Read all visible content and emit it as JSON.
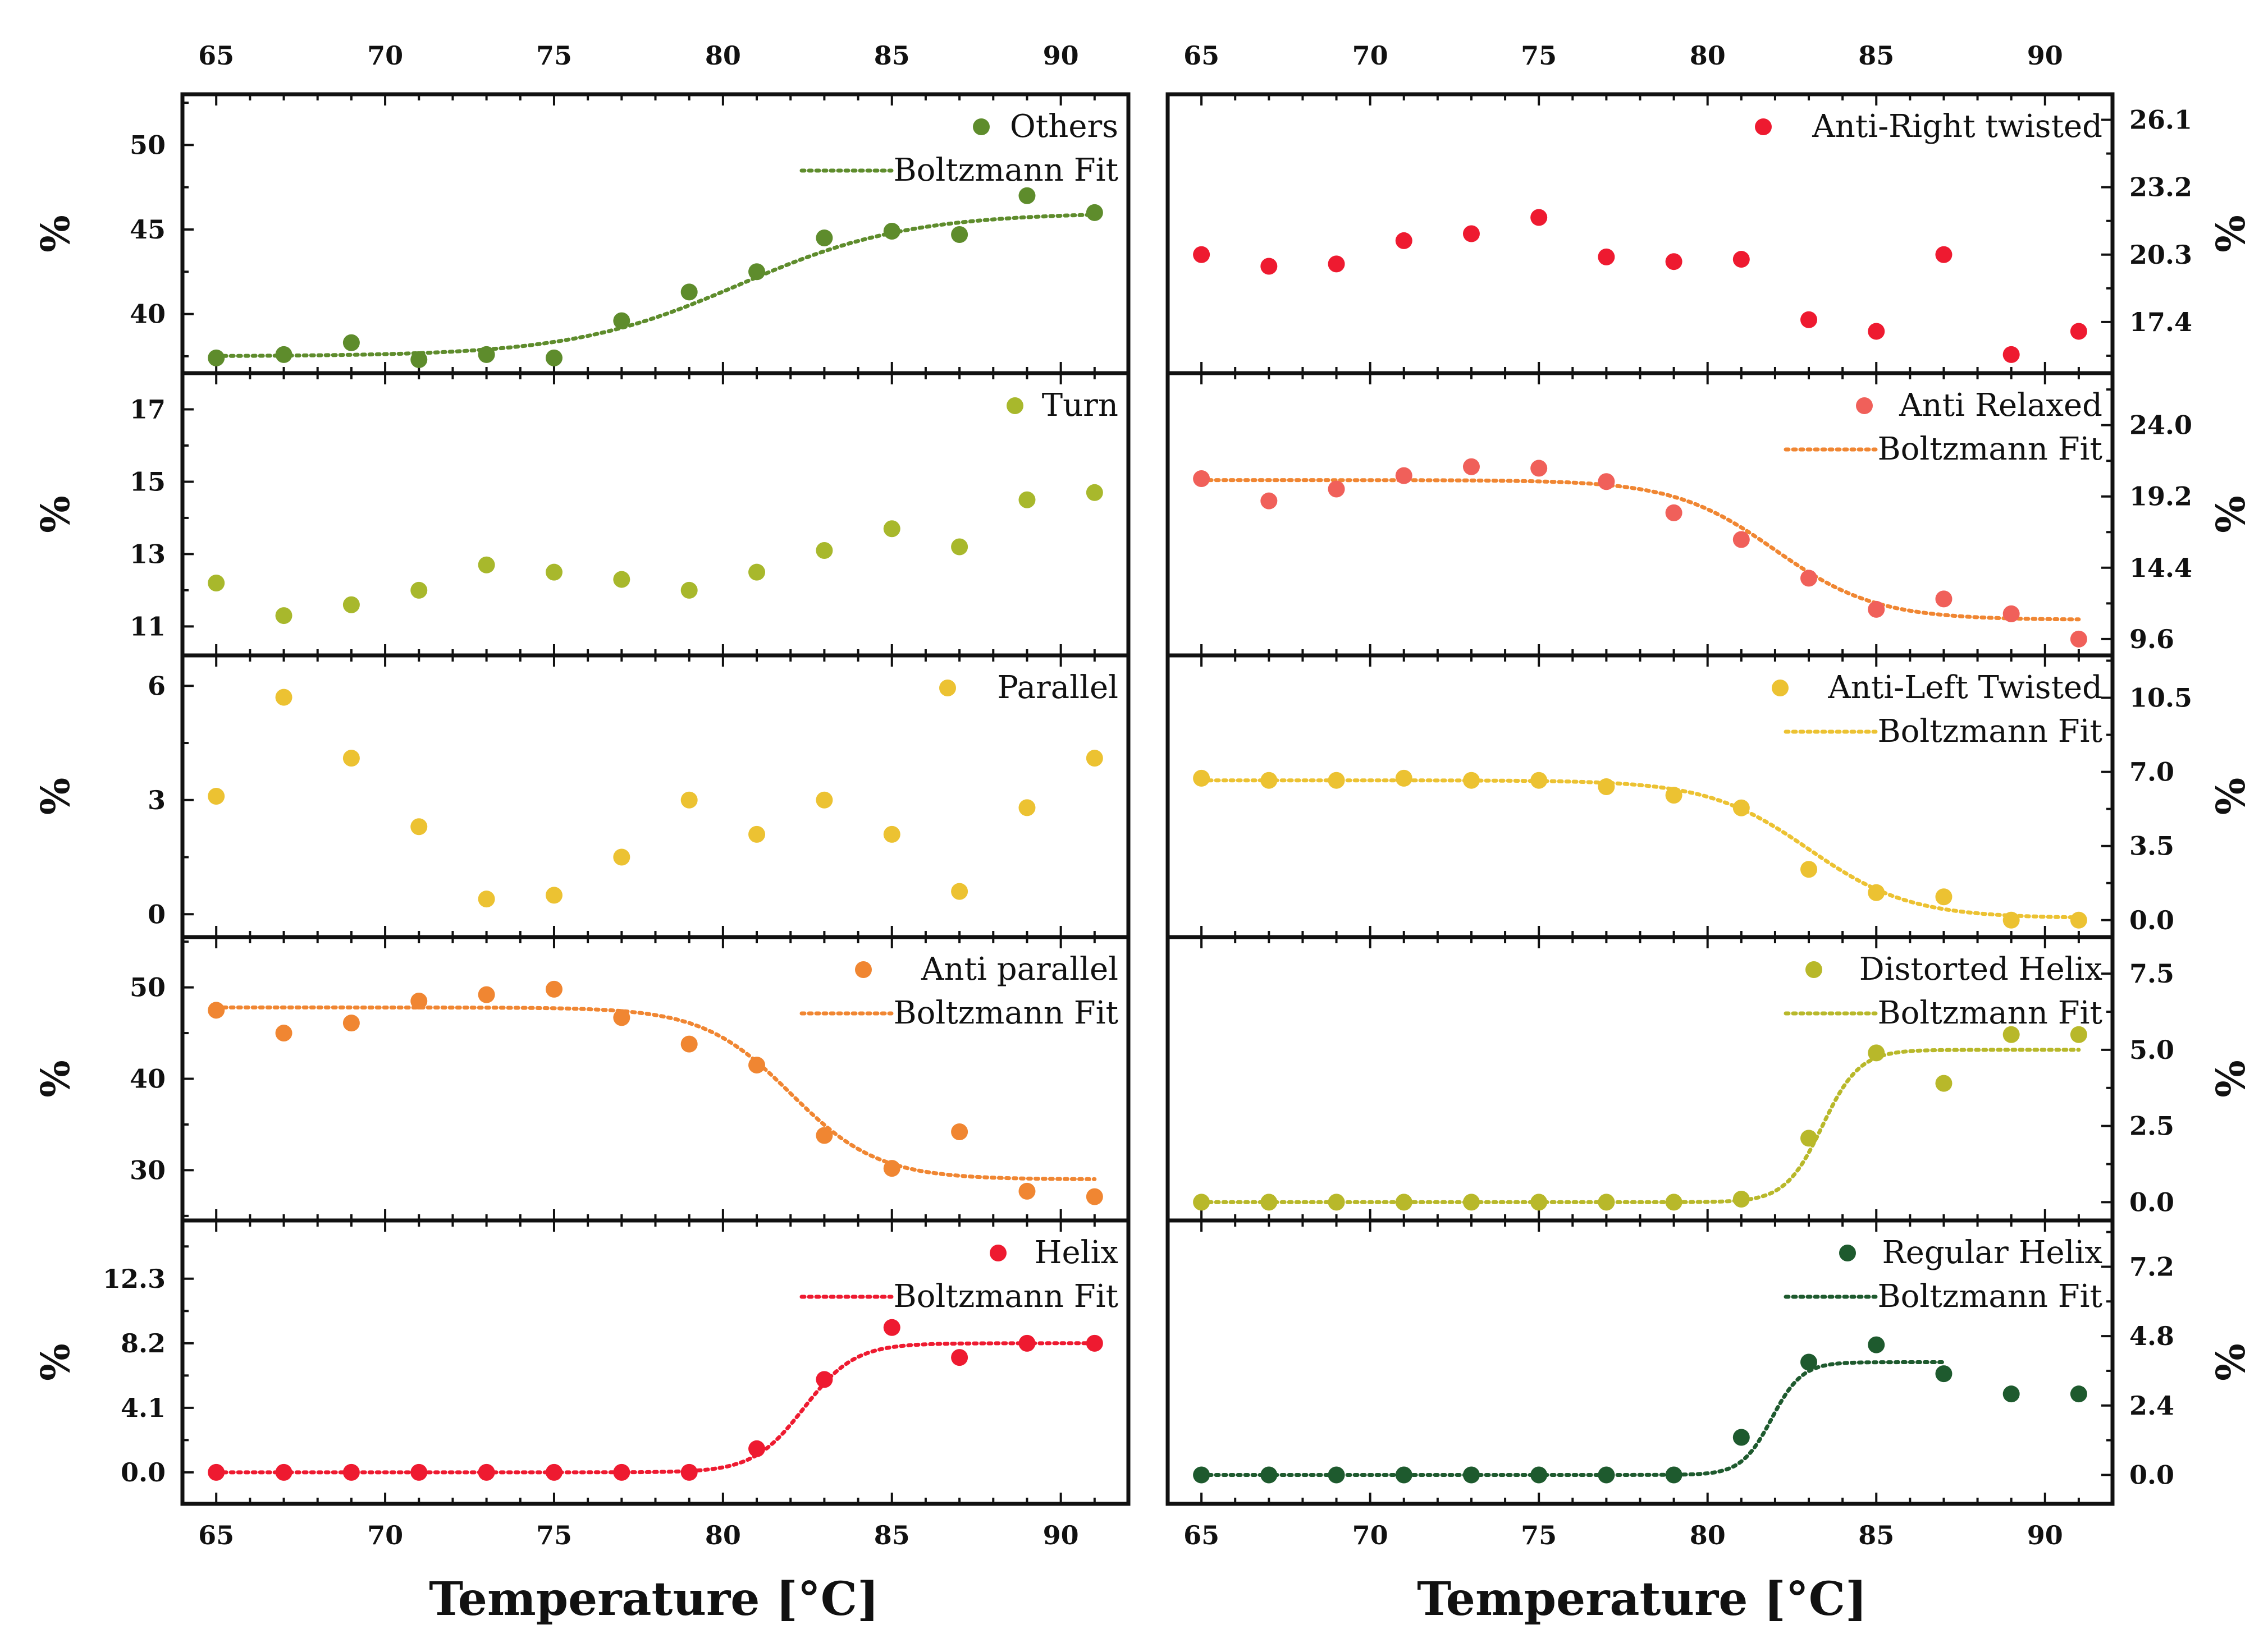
{
  "figure": {
    "xlabel_left": "Temperature [°C]",
    "xlabel_right": "Temperature [°C]",
    "x_ticks": [
      65,
      70,
      75,
      80,
      85,
      90
    ],
    "xlim": [
      64,
      92
    ]
  },
  "chart_data": [
    {
      "type": "scatter",
      "column": "left",
      "row": 0,
      "ylabel": "%",
      "ylim": [
        36.5,
        53
      ],
      "yticks": [
        40,
        45,
        50
      ],
      "legend": {
        "position": "top-right",
        "entries": [
          "Others",
          "Boltzmann Fit"
        ]
      },
      "series": [
        {
          "name": "Others",
          "color": "#5e8c2c",
          "x": [
            65,
            67,
            69,
            71,
            73,
            75,
            77,
            79,
            81,
            83,
            85,
            87,
            89,
            91
          ],
          "y": [
            37.4,
            37.6,
            38.3,
            37.3,
            37.6,
            37.4,
            39.6,
            41.3,
            42.5,
            44.5,
            44.9,
            44.7,
            47.0,
            46.0
          ]
        }
      ],
      "fit": {
        "name": "Boltzmann Fit",
        "color": "#5e8c2c",
        "A1": 37.5,
        "A2": 46.0,
        "x0": 80.5,
        "dx": 2.5,
        "x_range": [
          65,
          91
        ]
      }
    },
    {
      "type": "scatter",
      "column": "left",
      "row": 1,
      "ylabel": "%",
      "ylim": [
        10.2,
        18
      ],
      "yticks": [
        11,
        13,
        15,
        17
      ],
      "legend": {
        "position": "top-right",
        "entries": [
          "Turn"
        ]
      },
      "series": [
        {
          "name": "Turn",
          "color": "#a8b82c",
          "x": [
            65,
            67,
            69,
            71,
            73,
            75,
            77,
            79,
            81,
            83,
            85,
            87,
            89,
            91
          ],
          "y": [
            12.2,
            11.3,
            11.6,
            12.0,
            12.7,
            12.5,
            12.3,
            12.0,
            12.5,
            13.1,
            13.7,
            13.2,
            14.5,
            14.7
          ]
        }
      ]
    },
    {
      "type": "scatter",
      "column": "left",
      "row": 2,
      "ylabel": "%",
      "ylim": [
        -0.6,
        6.8
      ],
      "yticks": [
        0,
        3,
        6
      ],
      "legend": {
        "position": "top-right",
        "entries": [
          "Parallel"
        ]
      },
      "series": [
        {
          "name": "Parallel",
          "color": "#ecc232",
          "x": [
            65,
            67,
            69,
            71,
            73,
            75,
            77,
            79,
            81,
            83,
            85,
            87,
            89,
            91
          ],
          "y": [
            3.1,
            5.7,
            4.1,
            2.3,
            0.4,
            0.5,
            1.5,
            3.0,
            2.1,
            3.0,
            2.1,
            0.6,
            2.8,
            4.1
          ]
        }
      ]
    },
    {
      "type": "scatter",
      "column": "left",
      "row": 3,
      "ylabel": "%",
      "ylim": [
        24.5,
        55.5
      ],
      "yticks": [
        30,
        40,
        50
      ],
      "legend": {
        "position": "top-right",
        "entries": [
          "Anti parallel",
          "Boltzmann Fit"
        ]
      },
      "series": [
        {
          "name": "Anti parallel",
          "color": "#f08632",
          "x": [
            65,
            67,
            69,
            71,
            73,
            75,
            77,
            79,
            81,
            83,
            85,
            87,
            89,
            91
          ],
          "y": [
            47.5,
            45.0,
            46.1,
            48.5,
            49.2,
            49.8,
            46.7,
            43.8,
            41.5,
            33.8,
            30.2,
            34.2,
            27.7,
            27.1
          ]
        }
      ],
      "fit": {
        "name": "Boltzmann Fit",
        "color": "#f08632",
        "A1": 47.8,
        "A2": 29.0,
        "x0": 82.0,
        "dx": 1.3,
        "x_range": [
          65,
          91
        ]
      }
    },
    {
      "type": "scatter",
      "column": "left",
      "row": 4,
      "ylabel": "%",
      "ylim": [
        -2.0,
        16.0
      ],
      "yticks": [
        0.0,
        4.1,
        8.2,
        12.3
      ],
      "tick_format": 1,
      "legend": {
        "position": "top-right",
        "entries": [
          "Helix",
          "Boltzmann Fit"
        ]
      },
      "series": [
        {
          "name": "Helix",
          "color": "#ee1a30",
          "x": [
            65,
            67,
            69,
            71,
            73,
            75,
            77,
            79,
            81,
            83,
            85,
            87,
            89,
            91
          ],
          "y": [
            0.0,
            0.0,
            0.0,
            0.0,
            0.0,
            0.0,
            0.0,
            0.0,
            1.5,
            5.9,
            9.2,
            7.3,
            8.2,
            8.2
          ]
        }
      ],
      "fit": {
        "name": "Boltzmann Fit",
        "color": "#ee1a30",
        "A1": 0.0,
        "A2": 8.2,
        "x0": 82.4,
        "dx": 0.75,
        "x_range": [
          65,
          91
        ]
      }
    },
    {
      "type": "scatter",
      "column": "right",
      "row": 0,
      "ylabel": "%",
      "ylim": [
        15.2,
        27.2
      ],
      "yticks": [
        17.4,
        20.3,
        23.2,
        26.1
      ],
      "tick_format": 1,
      "legend": {
        "position": "top-right",
        "entries": [
          "Anti-Right twisted"
        ]
      },
      "series": [
        {
          "name": "Anti-Right twisted",
          "color": "#ee1a30",
          "x": [
            65,
            67,
            69,
            71,
            73,
            75,
            77,
            79,
            81,
            83,
            85,
            87,
            89,
            91
          ],
          "y": [
            20.3,
            19.8,
            19.9,
            20.9,
            21.2,
            21.9,
            20.2,
            20.0,
            20.1,
            17.5,
            17.0,
            20.3,
            16.0,
            17.0
          ]
        }
      ]
    },
    {
      "type": "scatter",
      "column": "right",
      "row": 1,
      "ylabel": "%",
      "ylim": [
        8.5,
        27.5
      ],
      "yticks": [
        9.6,
        14.4,
        19.2,
        24.0
      ],
      "tick_format": 1,
      "legend": {
        "position": "top-right",
        "entries": [
          "Anti Relaxed",
          "Boltzmann Fit"
        ]
      },
      "series": [
        {
          "name": "Anti Relaxed",
          "color": "#f0605a",
          "x": [
            65,
            67,
            69,
            71,
            73,
            75,
            77,
            79,
            81,
            83,
            85,
            87,
            89,
            91
          ],
          "y": [
            20.4,
            18.9,
            19.7,
            20.6,
            21.2,
            21.1,
            20.2,
            18.1,
            16.3,
            13.7,
            11.6,
            12.3,
            11.3,
            9.6
          ]
        }
      ],
      "fit": {
        "name": "Boltzmann Fit",
        "color": "#f08632",
        "A1": 20.3,
        "A2": 10.9,
        "x0": 82.0,
        "dx": 1.5,
        "x_range": [
          65,
          91
        ]
      }
    },
    {
      "type": "scatter",
      "column": "right",
      "row": 2,
      "ylabel": "%",
      "ylim": [
        -0.8,
        12.5
      ],
      "yticks": [
        0.0,
        3.5,
        7.0,
        10.5
      ],
      "tick_format": 1,
      "legend": {
        "position": "top-right",
        "entries": [
          "Anti-Left Twisted",
          "Boltzmann Fit"
        ]
      },
      "series": [
        {
          "name": "Anti-Left Twisted",
          "color": "#ecc232",
          "x": [
            65,
            67,
            69,
            71,
            73,
            75,
            77,
            79,
            81,
            83,
            85,
            87,
            89,
            91
          ],
          "y": [
            6.7,
            6.6,
            6.6,
            6.7,
            6.6,
            6.6,
            6.3,
            5.9,
            5.3,
            2.4,
            1.3,
            1.1,
            0.0,
            0.0
          ]
        }
      ],
      "fit": {
        "name": "Boltzmann Fit",
        "color": "#ecc232",
        "A1": 6.6,
        "A2": 0.1,
        "x0": 83.0,
        "dx": 1.5,
        "x_range": [
          65,
          91
        ]
      }
    },
    {
      "type": "scatter",
      "column": "right",
      "row": 3,
      "ylabel": "%",
      "ylim": [
        -0.6,
        8.7
      ],
      "yticks": [
        0.0,
        2.5,
        5.0,
        7.5
      ],
      "tick_format": 1,
      "legend": {
        "position": "top-right",
        "entries": [
          "Distorted Helix",
          "Boltzmann Fit"
        ]
      },
      "series": [
        {
          "name": "Distorted Helix",
          "color": "#b8b82a",
          "x": [
            65,
            67,
            69,
            71,
            73,
            75,
            77,
            79,
            81,
            83,
            85,
            87,
            89,
            91
          ],
          "y": [
            0.0,
            0.0,
            0.0,
            0.0,
            0.0,
            0.0,
            0.0,
            0.0,
            0.1,
            2.1,
            4.9,
            3.9,
            5.5,
            5.5
          ]
        }
      ],
      "fit": {
        "name": "Boltzmann Fit",
        "color": "#b8b82a",
        "A1": 0.0,
        "A2": 5.0,
        "x0": 83.4,
        "dx": 0.55,
        "x_range": [
          65,
          91
        ]
      }
    },
    {
      "type": "scatter",
      "column": "right",
      "row": 4,
      "ylabel": "%",
      "ylim": [
        -1.0,
        8.8
      ],
      "yticks": [
        0.0,
        2.4,
        4.8,
        7.2
      ],
      "tick_format": 1,
      "legend": {
        "position": "top-right",
        "entries": [
          "Regular Helix",
          "Boltzmann Fit"
        ]
      },
      "series": [
        {
          "name": "Regular Helix",
          "color": "#1e5a2e",
          "x": [
            65,
            67,
            69,
            71,
            73,
            75,
            77,
            79,
            81,
            83,
            85,
            87,
            89,
            91
          ],
          "y": [
            0.0,
            0.0,
            0.0,
            0.0,
            0.0,
            0.0,
            0.0,
            0.0,
            1.3,
            3.9,
            4.5,
            3.5,
            2.8,
            2.8
          ]
        }
      ],
      "fit": {
        "name": "Boltzmann Fit",
        "color": "#1e5a2e",
        "A1": 0.0,
        "A2": 3.9,
        "x0": 81.9,
        "dx": 0.45,
        "x_range": [
          65,
          87
        ]
      }
    }
  ]
}
